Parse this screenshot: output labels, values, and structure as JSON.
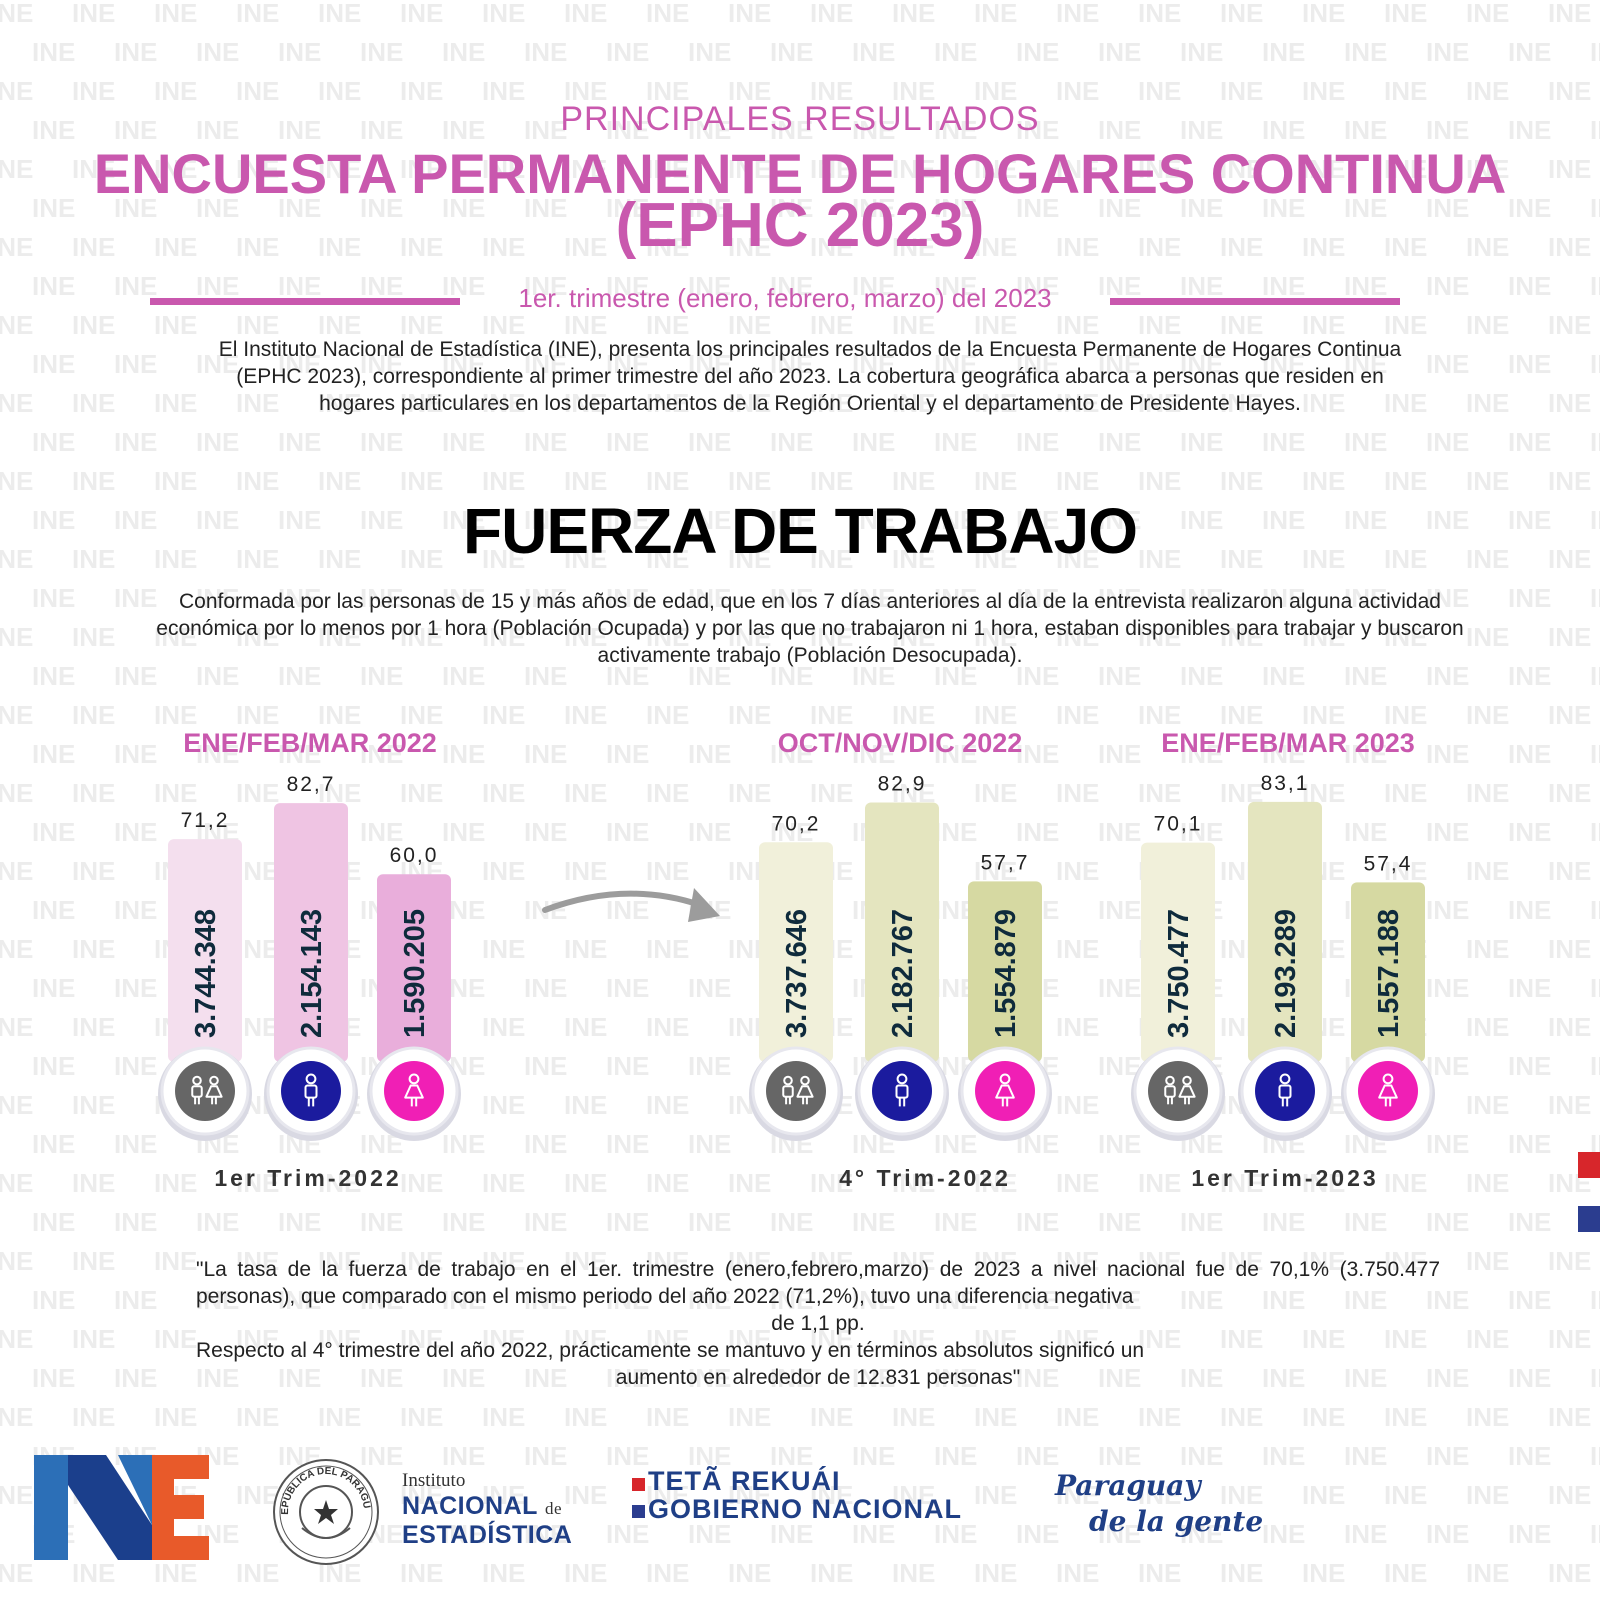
{
  "watermark_text": "INE",
  "header": {
    "subtitle": "PRINCIPALES RESULTADOS",
    "title_line1": "ENCUESTA PERMANENTE DE HOGARES CONTINUA",
    "title_line2": "(EPHC 2023)",
    "period": "1er. trimestre  (enero, febrero, marzo) del 2023"
  },
  "intro": "El Instituto Nacional de Estadística (INE), presenta los principales resultados de la Encuesta Permanente de Hogares Continua (EPHC 2023), correspondiente al primer trimestre del año 2023.  La cobertura geográfica abarca a personas que residen en hogares particulares en los departamentos de la Región Oriental y el departamento de Presidente Hayes.",
  "section": {
    "title": "FUERZA DE TRABAJO",
    "definition": "Conformada por las personas de 15 y más años de edad, que en los 7 días anteriores al día de la entrevista realizaron alguna actividad económica por lo menos por 1 hora (Población Ocupada) y por las que no trabajaron ni 1 hora, estaban disponibles para trabajar y buscaron activamente trabajo (Población Desocupada)."
  },
  "chart_data": [
    {
      "type": "bar",
      "title": "ENE/FEB/MAR 2022",
      "footer": "1er Trim-2022",
      "categories": [
        "total-icon",
        "male-icon",
        "female-icon"
      ],
      "values": [
        71.2,
        82.7,
        60.0
      ],
      "value_labels": [
        "71,2",
        "82,7",
        "60,0"
      ],
      "absolute_labels": [
        "3.744.348",
        "2.154.143",
        "1.590.205"
      ],
      "colors": [
        "#f4dfee",
        "#efc4e3",
        "#e9aedb"
      ]
    },
    {
      "type": "bar",
      "title": "OCT/NOV/DIC  2022",
      "footer": "4° Trim-2022",
      "categories": [
        "total-icon",
        "male-icon",
        "female-icon"
      ],
      "values": [
        70.2,
        82.9,
        57.7
      ],
      "value_labels": [
        "70,2",
        "82,9",
        "57,7"
      ],
      "absolute_labels": [
        "3.737.646",
        "2.182.767",
        "1.554.879"
      ],
      "colors": [
        "#f1f0da",
        "#e4e5bf",
        "#d6d9a2"
      ]
    },
    {
      "type": "bar",
      "title": "ENE/FEB/MAR 2023",
      "footer": "1er Trim-2023",
      "categories": [
        "total-icon",
        "male-icon",
        "female-icon"
      ],
      "values": [
        70.1,
        83.1,
        57.4
      ],
      "value_labels": [
        "70,1",
        "83,1",
        "57,4"
      ],
      "absolute_labels": [
        "3.750.477",
        "2.193.289",
        "1.557.188"
      ],
      "colors": [
        "#f1f0da",
        "#e4e5bf",
        "#d6d9a2"
      ]
    }
  ],
  "icon_colors": {
    "total": "#666666",
    "male": "#1b1b9e",
    "female": "#f01fb5"
  },
  "quote": {
    "p1": "\"La tasa de la fuerza de trabajo en el 1er. trimestre (enero,febrero,marzo) de 2023 a nivel nacional fue de 70,1% (3.750.477 personas), que comparado con el mismo periodo del año 2022 (71,2%), tuvo una diferencia negativa",
    "p1_end": "de 1,1 pp.",
    "p2": "Respecto al 4° trimestre del año 2022, prácticamente se mantuvo y en términos absolutos significó un",
    "p2_end": "aumento en alrededor de 12.831 personas\""
  },
  "footer": {
    "institute_small": "Instituto",
    "institute_big1": "NACIONAL",
    "institute_de": "de",
    "institute_big2": "ESTADÍSTICA",
    "seal_text": "REPÚBLICA DEL PARAGUAY",
    "gov1": "TETÃ REKUÁI",
    "gov2": "GOBIERNO NACIONAL",
    "slogan1": "Paraguay",
    "slogan2": "de la gente"
  },
  "colors": {
    "accent": "#c958ae",
    "navy": "#1f3f86",
    "flag_red": "#d7262b",
    "flag_blue": "#2b3d8f"
  }
}
